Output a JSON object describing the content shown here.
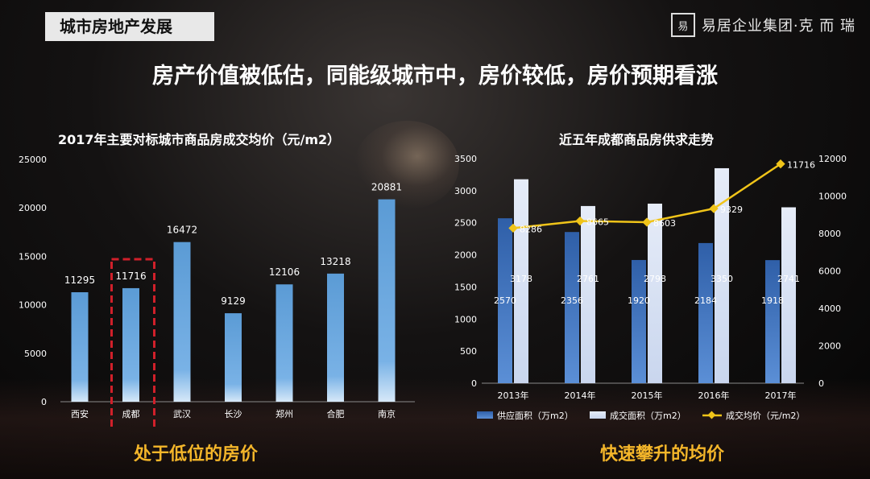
{
  "header": {
    "section_title": "城市房地产发展",
    "brand_mark": "易",
    "brand_text": "易居企业集团·克 而 瑞"
  },
  "headline": "房产价值被低估，同能级城市中，房价较低，房价预期看涨",
  "colors": {
    "bar_blue": "#5b9bd5",
    "bar_dark_blue": "#2f5fa8",
    "bar_light": "#c9d6ee",
    "line_yellow": "#f0c419",
    "highlight_red": "#d0202a",
    "caption_orange": "#f4b62a"
  },
  "left_chart": {
    "title": "2017年主要对标城市商品房成交均价（元/m2）",
    "caption": "处于低位的房价"
  },
  "right_chart": {
    "title": "近五年成都商品房供求走势",
    "caption": "快速攀升的均价",
    "legend": [
      "供应面积（万m2）",
      "成交面积（万m2）",
      "成交均价（元/m2）"
    ]
  },
  "chart_data": [
    {
      "type": "bar",
      "title": "2017年主要对标城市商品房成交均价（元/m2）",
      "categories": [
        "西安",
        "成都",
        "武汉",
        "长沙",
        "郑州",
        "合肥",
        "南京"
      ],
      "values": [
        11295,
        11716,
        16472,
        9129,
        12106,
        13218,
        20881
      ],
      "ylim": [
        0,
        25000
      ],
      "yticks": [
        0,
        5000,
        10000,
        15000,
        20000,
        25000
      ],
      "highlight": "成都"
    },
    {
      "type": "bar",
      "title": "近五年成都商品房供求走势",
      "categories": [
        "2013年",
        "2014年",
        "2015年",
        "2016年",
        "2017年"
      ],
      "series": [
        {
          "name": "供应面积（万m2）",
          "type": "bar",
          "axis": "left",
          "values": [
            2570,
            2356,
            1920,
            2184,
            1918
          ]
        },
        {
          "name": "成交面积（万m2）",
          "type": "bar",
          "axis": "left",
          "values": [
            3178,
            2761,
            2798,
            3350,
            2741
          ]
        },
        {
          "name": "成交均价（元/m2）",
          "type": "line",
          "axis": "right",
          "values": [
            8286,
            8665,
            8603,
            9329,
            11716
          ]
        }
      ],
      "ylim_left": [
        0,
        3500
      ],
      "yticks_left": [
        0,
        500,
        1000,
        1500,
        2000,
        2500,
        3000,
        3500
      ],
      "ylim_right": [
        0,
        12000
      ],
      "yticks_right": [
        0,
        2000,
        4000,
        6000,
        8000,
        10000,
        12000
      ],
      "legend_position": "bottom"
    }
  ]
}
